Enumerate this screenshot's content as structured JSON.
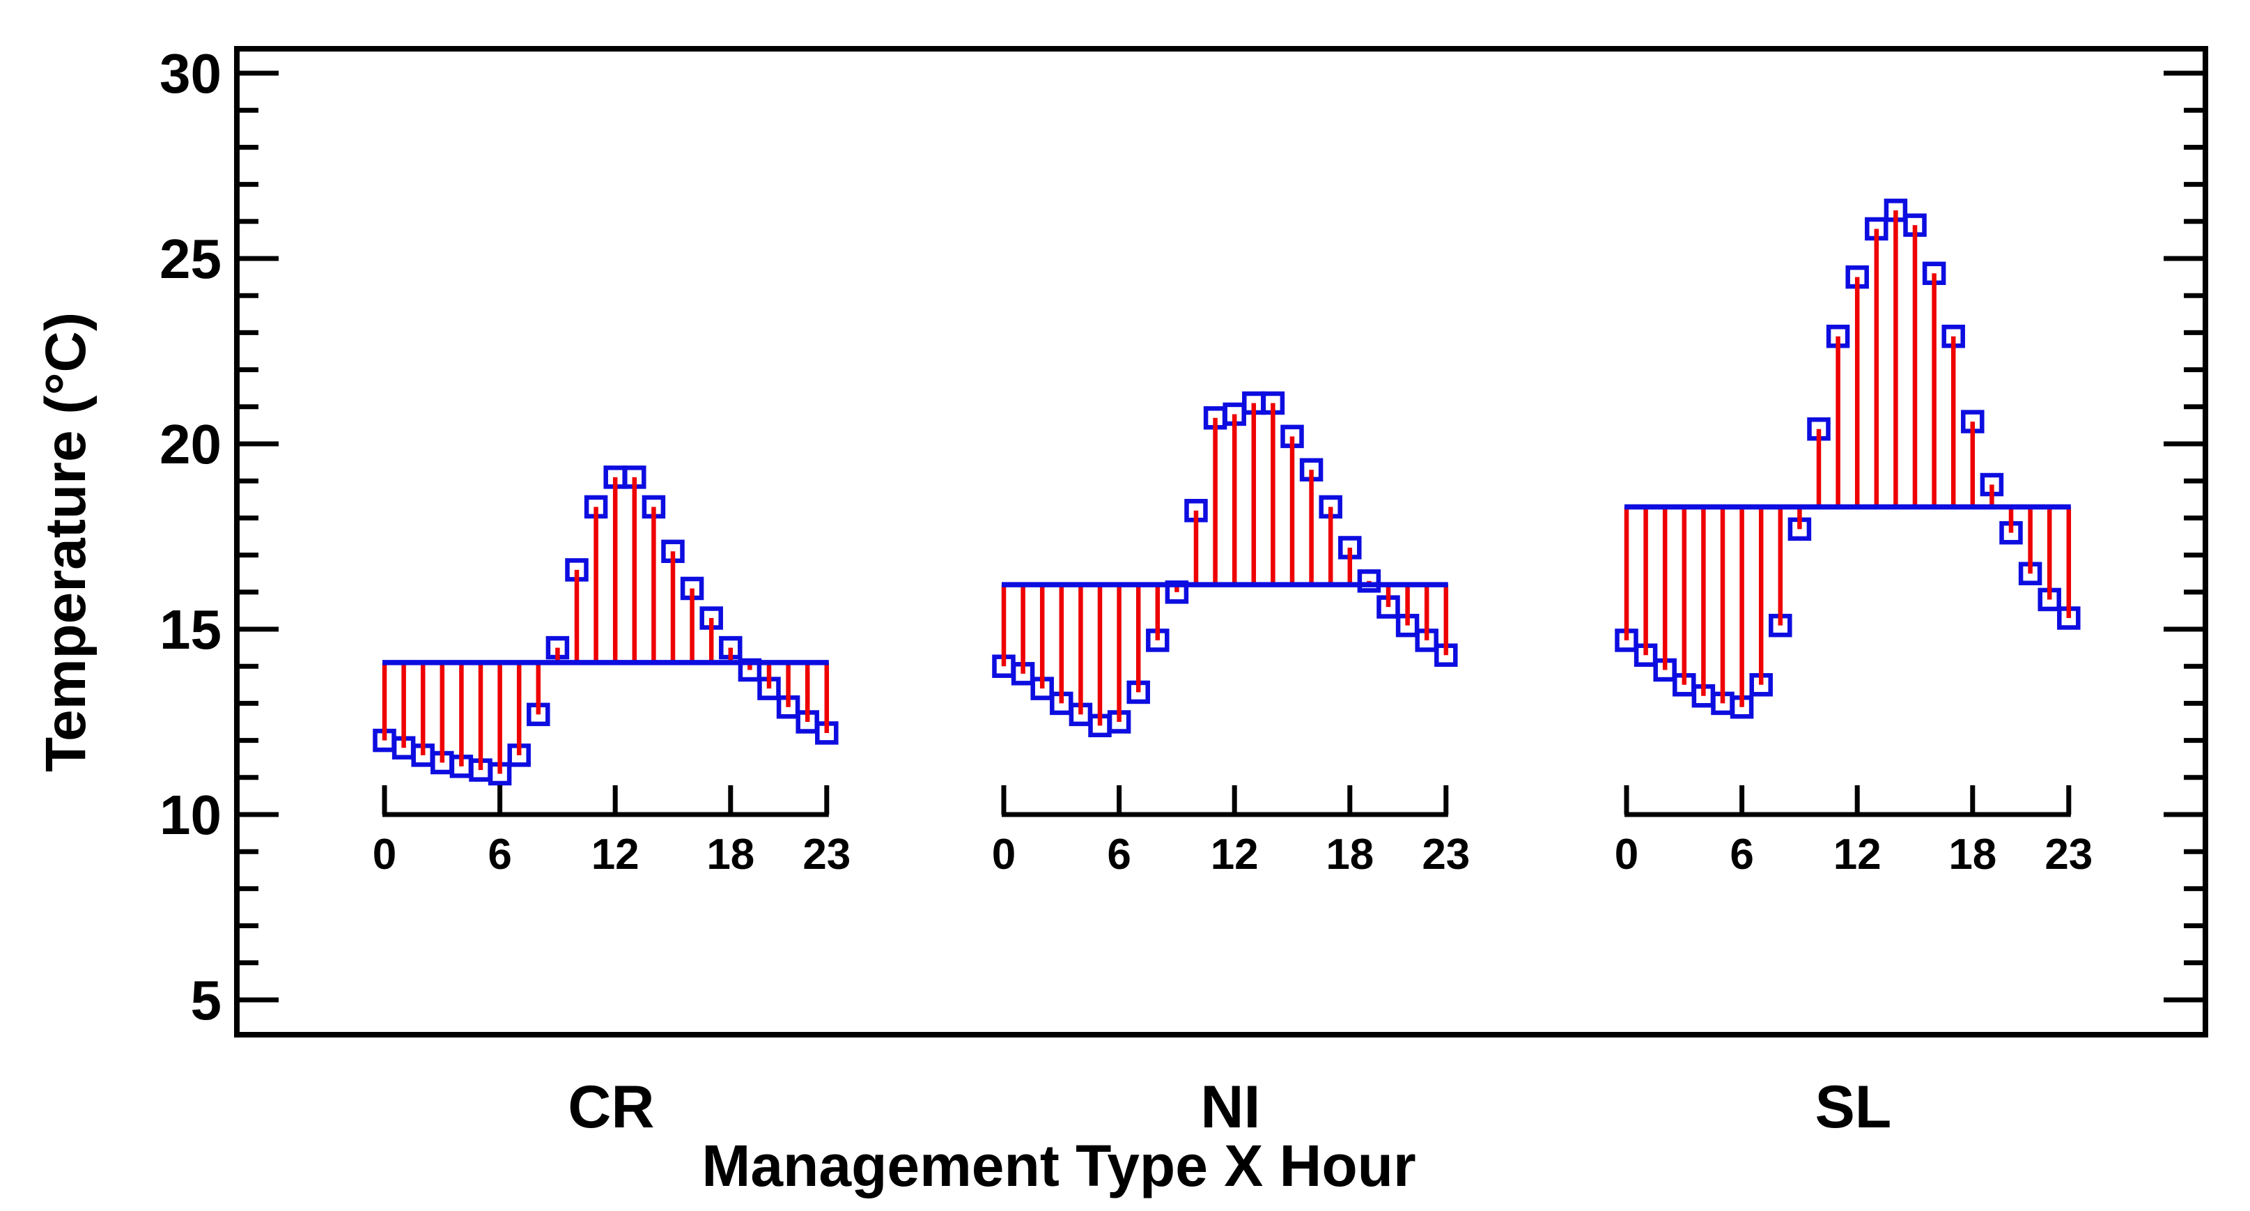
{
  "figure": {
    "y_axis_title": "Temperature (°C)",
    "x_axis_title": "Management Type X Hour"
  },
  "colors": {
    "stem_red": "#ee0000",
    "marker_blue": "#0d0de0",
    "mean_line_blue": "#0d0de0",
    "axis_black": "#000000",
    "background": "#ffffff"
  },
  "chart_data": {
    "type": "stem-grouped",
    "title": "",
    "ylabel": "Temperature (°C)",
    "xlabel": "Management Type X Hour",
    "y_axis": {
      "min": 5,
      "max": 30,
      "major_ticks": [
        30,
        25,
        20,
        15,
        10,
        5
      ],
      "minor_tick_step": 1,
      "unit": "°C"
    },
    "hour_axis": {
      "ticks": [
        0,
        6,
        12,
        18,
        23
      ],
      "hours_per_group": 24
    },
    "legend": "none",
    "grid": "off",
    "groups": [
      {
        "label": "CR",
        "mean": 14.1,
        "hours": [
          0,
          1,
          2,
          3,
          4,
          5,
          6,
          7,
          8,
          9,
          10,
          11,
          12,
          13,
          14,
          15,
          16,
          17,
          18,
          19,
          20,
          21,
          22,
          23
        ],
        "values": [
          12.0,
          11.8,
          11.6,
          11.4,
          11.3,
          11.2,
          11.1,
          11.6,
          12.7,
          14.5,
          16.6,
          18.3,
          19.1,
          19.1,
          18.3,
          17.1,
          16.1,
          15.3,
          14.5,
          13.9,
          13.4,
          12.9,
          12.5,
          12.2
        ]
      },
      {
        "label": "NI",
        "mean": 16.2,
        "hours": [
          0,
          1,
          2,
          3,
          4,
          5,
          6,
          7,
          8,
          9,
          10,
          11,
          12,
          13,
          14,
          15,
          16,
          17,
          18,
          19,
          20,
          21,
          22,
          23
        ],
        "values": [
          14.0,
          13.8,
          13.4,
          13.0,
          12.7,
          12.4,
          12.5,
          13.3,
          14.7,
          16.0,
          18.2,
          20.7,
          20.8,
          21.1,
          21.1,
          20.2,
          19.3,
          18.3,
          17.2,
          16.3,
          15.6,
          15.1,
          14.7,
          14.3
        ]
      },
      {
        "label": "SL",
        "mean": 18.3,
        "hours": [
          0,
          1,
          2,
          3,
          4,
          5,
          6,
          7,
          8,
          9,
          10,
          11,
          12,
          13,
          14,
          15,
          16,
          17,
          18,
          19,
          20,
          21,
          22,
          23
        ],
        "values": [
          14.7,
          14.3,
          13.9,
          13.5,
          13.2,
          13.0,
          12.9,
          13.5,
          15.1,
          17.7,
          20.4,
          22.9,
          24.5,
          25.8,
          26.3,
          25.9,
          24.6,
          22.9,
          20.6,
          18.9,
          17.6,
          16.5,
          15.8,
          15.3
        ]
      }
    ]
  }
}
